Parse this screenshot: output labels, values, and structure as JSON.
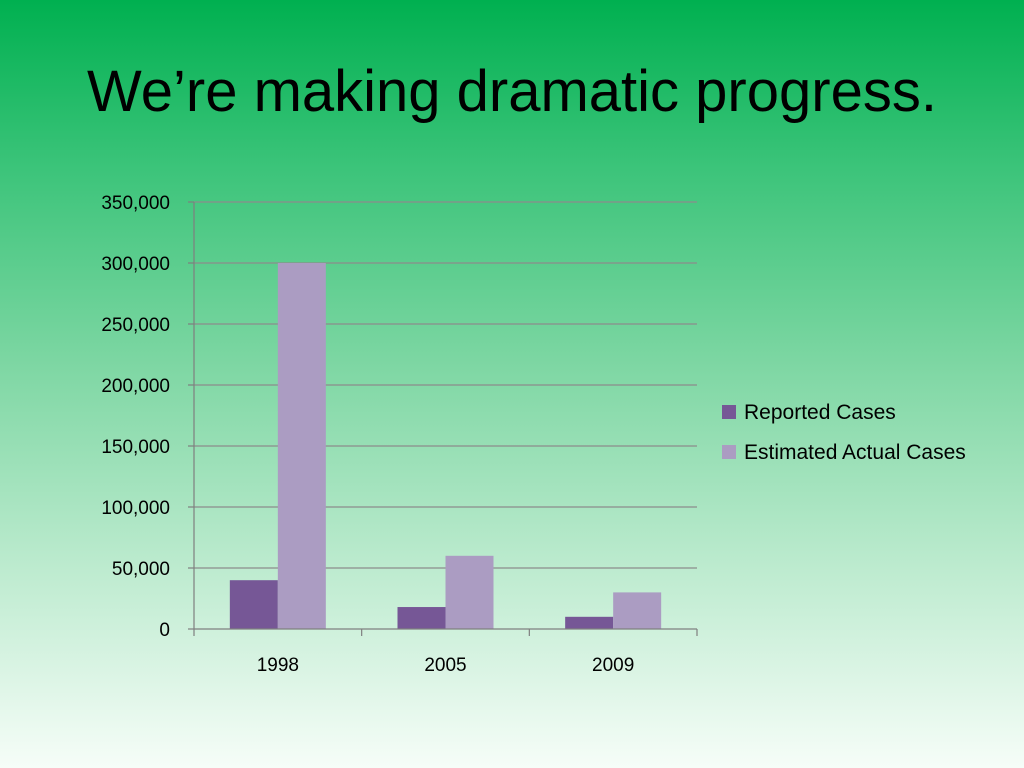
{
  "slide": {
    "title": "We’re making dramatic progress."
  },
  "colors": {
    "reported": "#765796",
    "estimated": "#ab9cc2",
    "gridline": "#8c8c8c",
    "axis": "#7f7f7f"
  },
  "chart_data": {
    "type": "bar",
    "title": "",
    "xlabel": "",
    "ylabel": "",
    "categories": [
      "1998",
      "2005",
      "2009"
    ],
    "series": [
      {
        "name": "Reported Cases",
        "values": [
          40000,
          18000,
          10000
        ]
      },
      {
        "name": "Estimated Actual Cases",
        "values": [
          300000,
          60000,
          30000
        ]
      }
    ],
    "ylim": [
      0,
      350000
    ],
    "yticks": [
      0,
      50000,
      100000,
      150000,
      200000,
      250000,
      300000,
      350000
    ],
    "ytick_labels": [
      "0",
      "50,000",
      "100,000",
      "150,000",
      "200,000",
      "250,000",
      "300,000",
      "350,000"
    ],
    "grid": true,
    "legend_position": "right"
  }
}
